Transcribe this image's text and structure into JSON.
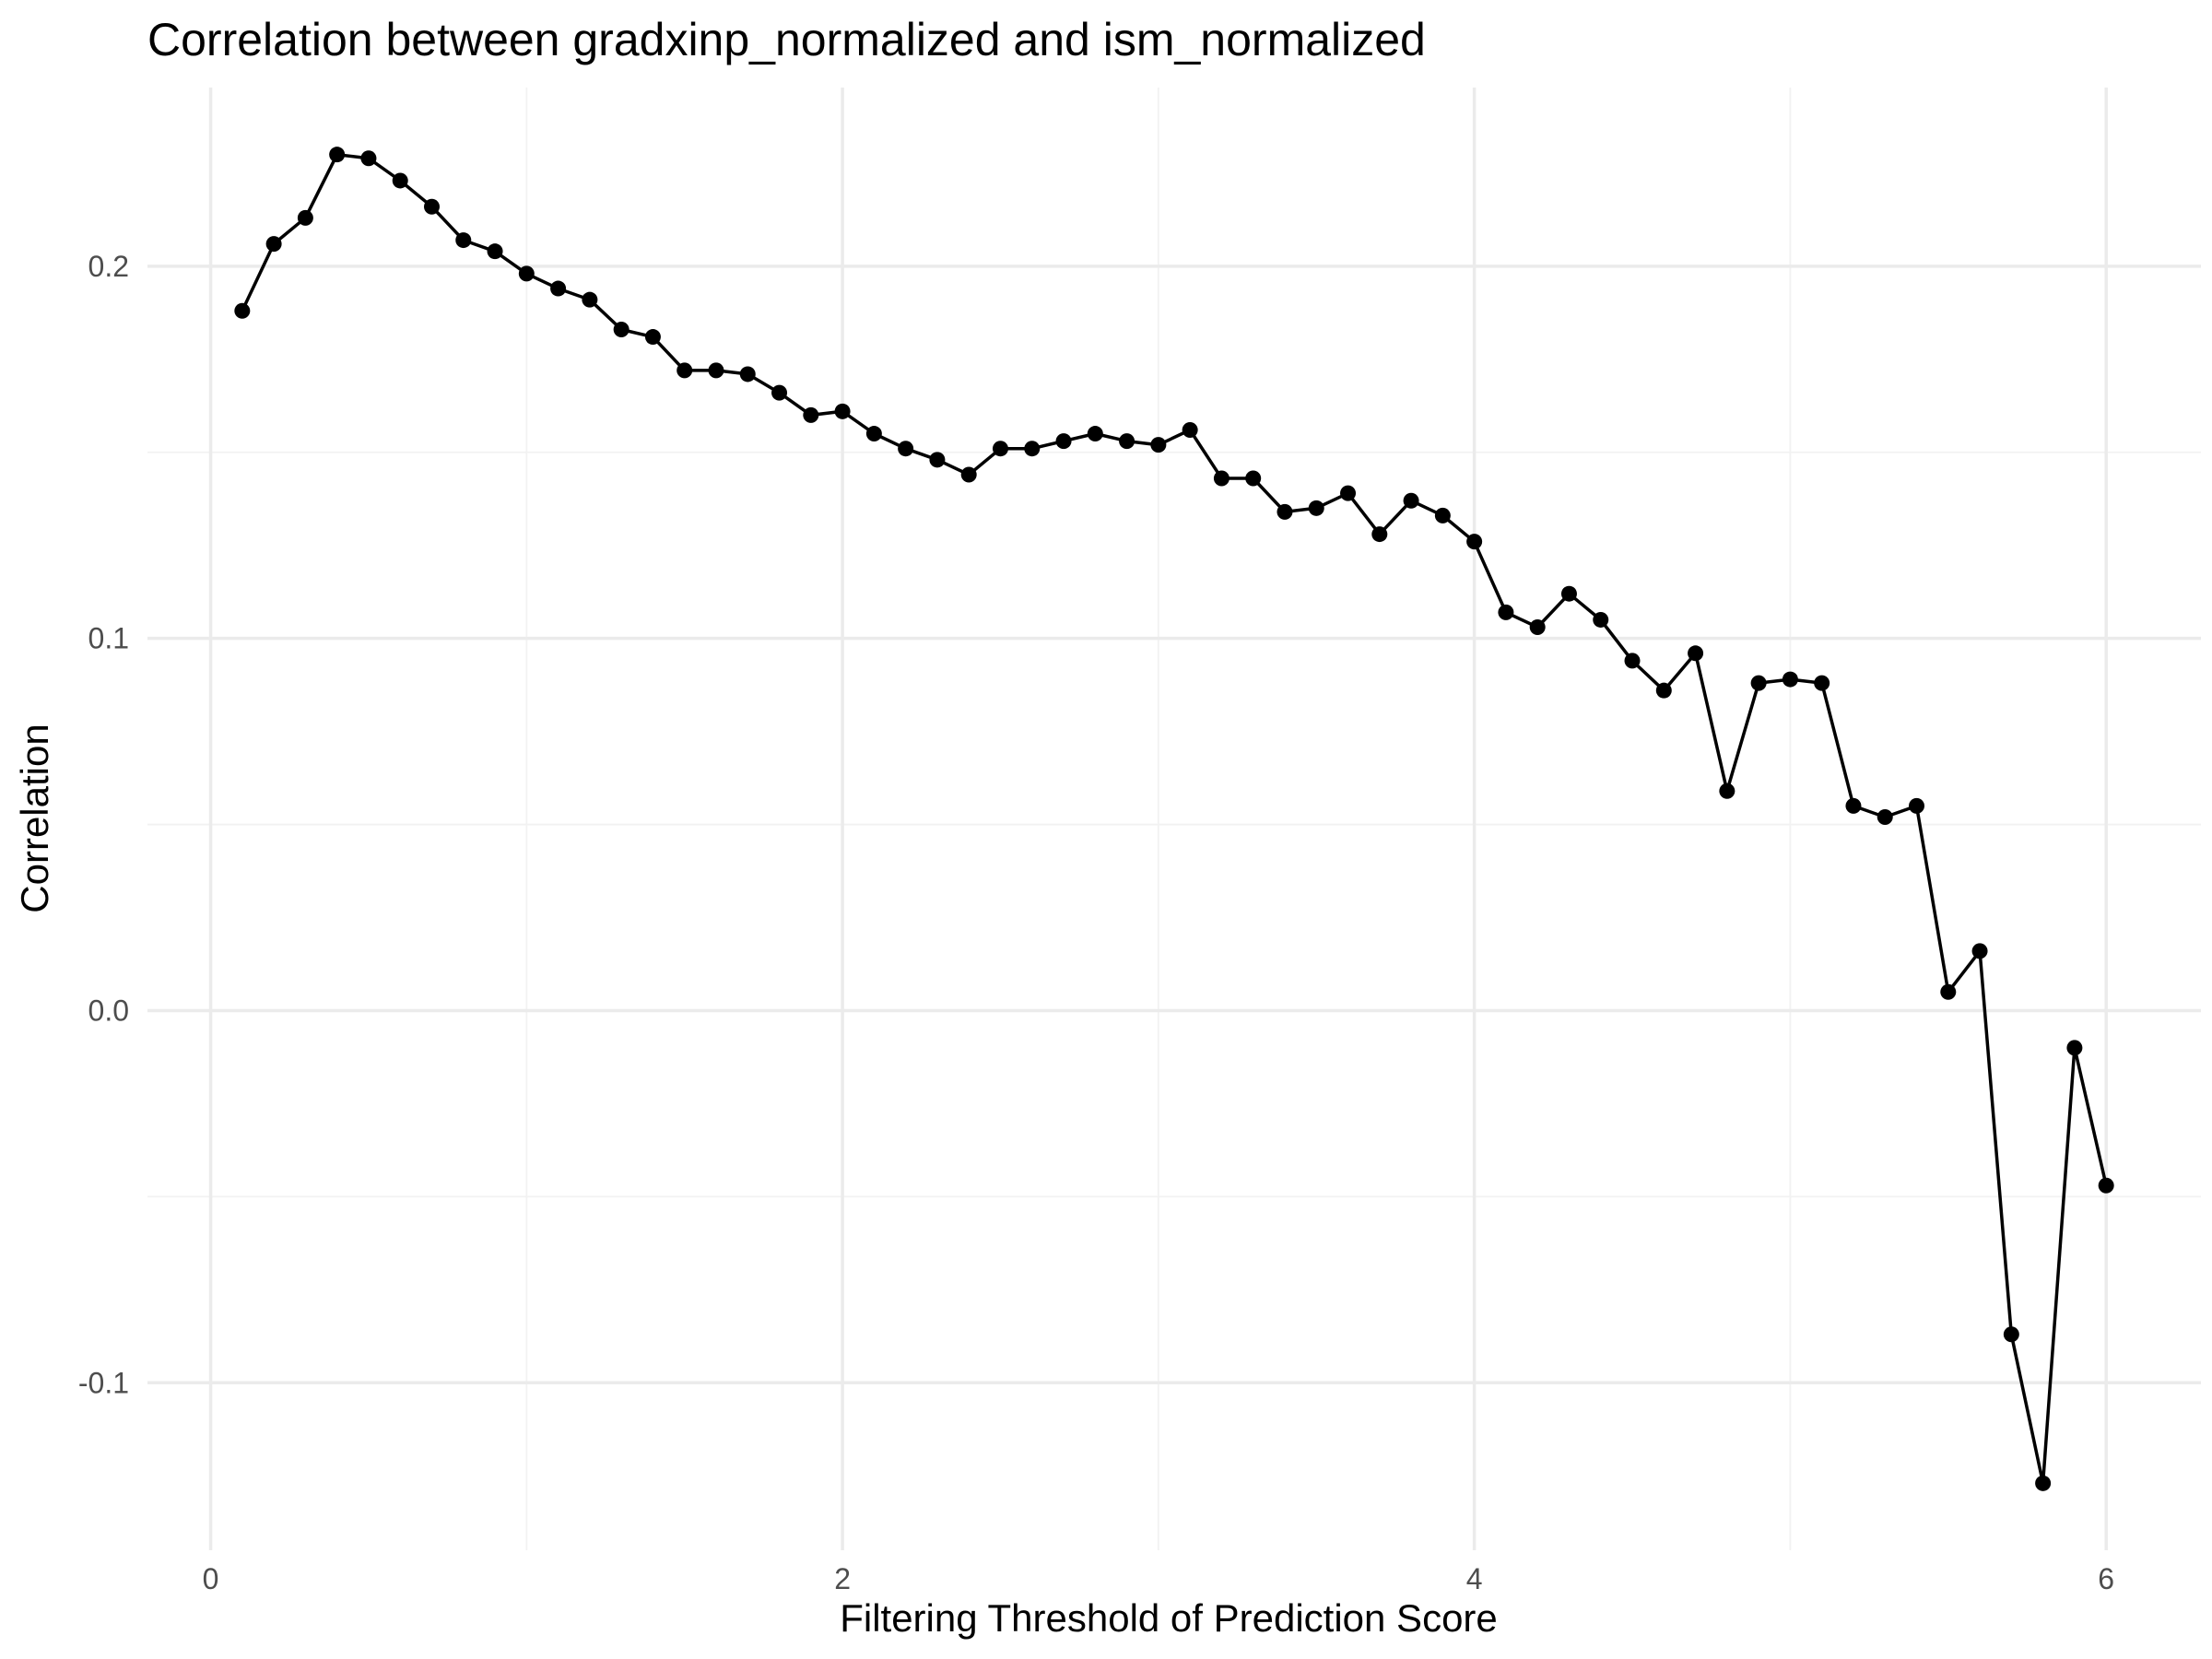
{
  "chart_data": {
    "type": "line",
    "title": "Correlation between gradxinp_normalized and ism_normalized",
    "xlabel": "Filtering Threshold of Prediction Score",
    "ylabel": "Correlation",
    "xlim": [
      -0.2,
      6.3
    ],
    "ylim": [
      -0.145,
      0.248
    ],
    "x_ticks": [
      0,
      2,
      4,
      6
    ],
    "x_tick_labels": [
      "0",
      "2",
      "4",
      "6"
    ],
    "x_minor_ticks": [
      1,
      3,
      5
    ],
    "y_ticks": [
      -0.1,
      0.0,
      0.1,
      0.2
    ],
    "y_tick_labels": [
      "-0.1",
      "0.0",
      "0.1",
      "0.2"
    ],
    "y_minor_ticks": [
      -0.05,
      0.05,
      0.15
    ],
    "grid": true,
    "legend": "none",
    "colors": {
      "line": "#000000",
      "point": "#000000",
      "grid": "#ebebeb"
    },
    "series": [
      {
        "x": [
          0.1,
          0.2,
          0.3,
          0.4,
          0.5,
          0.6,
          0.7,
          0.8,
          0.9,
          1.0,
          1.1,
          1.2,
          1.3,
          1.4,
          1.5,
          1.6,
          1.7,
          1.8,
          1.9,
          2.0,
          2.1,
          2.2,
          2.3,
          2.4,
          2.5,
          2.6,
          2.7,
          2.8,
          2.9,
          3.0,
          3.1,
          3.2,
          3.3,
          3.4,
          3.5,
          3.6,
          3.7,
          3.8,
          3.9,
          4.0,
          4.1,
          4.2,
          4.3,
          4.4,
          4.5,
          4.6,
          4.7,
          4.8,
          4.9,
          5.0,
          5.1,
          5.2,
          5.3,
          5.4,
          5.5,
          5.6,
          5.7,
          5.8,
          5.9,
          6.0
        ],
        "values": [
          0.188,
          0.206,
          0.213,
          0.23,
          0.229,
          0.223,
          0.216,
          0.207,
          0.204,
          0.198,
          0.194,
          0.191,
          0.183,
          0.181,
          0.172,
          0.172,
          0.171,
          0.166,
          0.16,
          0.161,
          0.155,
          0.151,
          0.148,
          0.144,
          0.151,
          0.151,
          0.153,
          0.155,
          0.153,
          0.152,
          0.156,
          0.143,
          0.143,
          0.134,
          0.135,
          0.139,
          0.128,
          0.137,
          0.133,
          0.126,
          0.107,
          0.103,
          0.112,
          0.105,
          0.094,
          0.086,
          0.096,
          0.059,
          0.088,
          0.089,
          0.088,
          0.055,
          0.052,
          0.055,
          0.005,
          0.016,
          -0.087,
          -0.127,
          -0.01,
          -0.047
        ]
      }
    ]
  }
}
